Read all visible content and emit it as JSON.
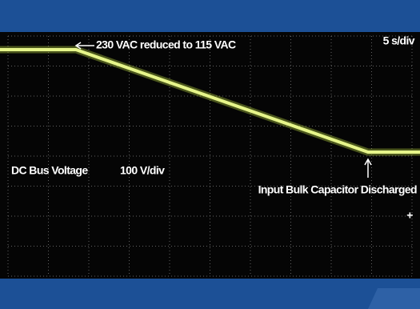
{
  "annotations": {
    "trace_note": "230 VAC reduced to 115 VAC",
    "timebase": "5 s/div",
    "channel": "DC Bus Voltage",
    "scale": "100 V/div",
    "event": "Input Bulk Capacitor Discharged",
    "marker": "+"
  }
}
